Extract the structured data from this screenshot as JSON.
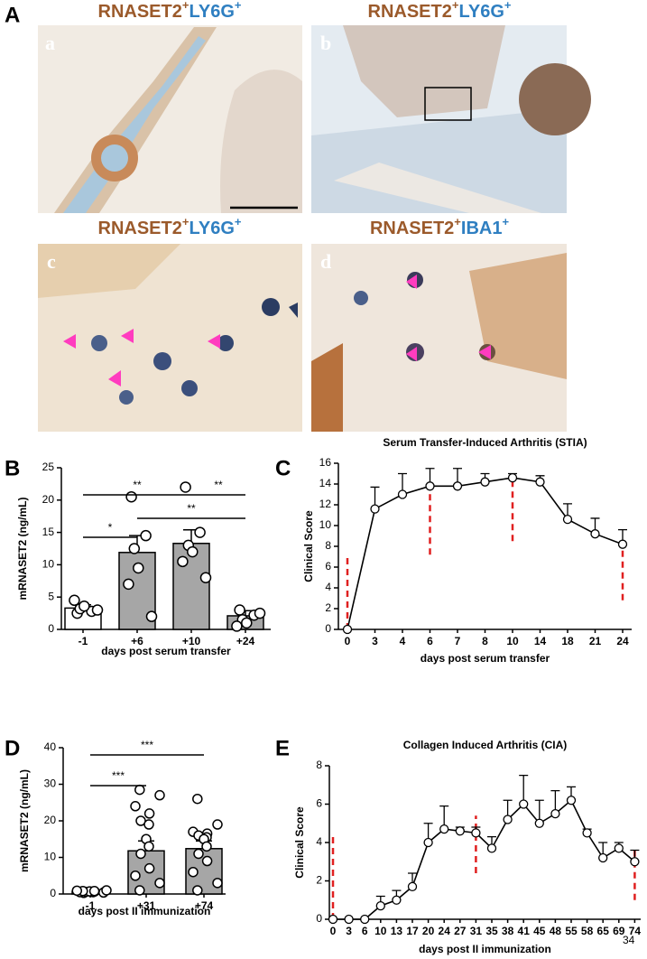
{
  "panel_labels": [
    "A",
    "B",
    "C",
    "D",
    "E"
  ],
  "micrographs": [
    {
      "label": "a",
      "title": [
        {
          "text": "RNASET2",
          "color": "#9b5a2b",
          "sup": false
        },
        {
          "text": "+",
          "color": "#9b5a2b",
          "sup": true
        },
        {
          "text": "LY6G",
          "color": "#2f7fc1",
          "sup": false
        },
        {
          "text": "+",
          "color": "#2f7fc1",
          "sup": true
        }
      ]
    },
    {
      "label": "b",
      "title": [
        {
          "text": "RNASET2",
          "color": "#9b5a2b",
          "sup": false
        },
        {
          "text": "+",
          "color": "#9b5a2b",
          "sup": true
        },
        {
          "text": "LY6G",
          "color": "#2f7fc1",
          "sup": false
        },
        {
          "text": "+",
          "color": "#2f7fc1",
          "sup": true
        }
      ]
    },
    {
      "label": "c",
      "title": [
        {
          "text": "RNASET2",
          "color": "#9b5a2b",
          "sup": false
        },
        {
          "text": "+",
          "color": "#9b5a2b",
          "sup": true
        },
        {
          "text": "LY6G",
          "color": "#2f7fc1",
          "sup": false
        },
        {
          "text": "+",
          "color": "#2f7fc1",
          "sup": true
        }
      ]
    },
    {
      "label": "d",
      "title": [
        {
          "text": "RNASET2",
          "color": "#9b5a2b",
          "sup": false
        },
        {
          "text": "+",
          "color": "#9b5a2b",
          "sup": true
        },
        {
          "text": "IBA1",
          "color": "#2f7fc1",
          "sup": false
        },
        {
          "text": "+",
          "color": "#2f7fc1",
          "sup": true
        }
      ]
    }
  ],
  "chart_data": [
    {
      "type": "bar",
      "categories": [
        "-1",
        "+6",
        "+10",
        "+24"
      ],
      "values": [
        3.3,
        11.9,
        13.3,
        2.1
      ],
      "errors": [
        0.5,
        2.6,
        2.1,
        0.8
      ],
      "colors": [
        "#ffffff",
        "#a6a6a6",
        "#a6a6a6",
        "#a6a6a6"
      ],
      "points": [
        [
          2.5,
          2.8,
          3.2,
          3.6,
          4.5,
          3.0
        ],
        [
          20.5,
          14.5,
          12.5,
          9.5,
          7.0,
          2.0
        ],
        [
          22.0,
          15.0,
          13.0,
          12.0,
          10.5,
          8.0
        ],
        [
          3.0,
          2.2,
          1.5,
          1.0,
          0.5,
          2.5
        ]
      ],
      "ylim": [
        0,
        25
      ],
      "yticks": [
        0,
        5,
        10,
        15,
        20,
        25
      ],
      "ylabel": "mRNASET2 (ng/mL)",
      "xlabel": "days post serum transfer",
      "brackets": [
        {
          "from": "-1",
          "to": "+10",
          "label": "**"
        },
        {
          "from": "+10",
          "to": "+24",
          "label": "**"
        },
        {
          "from": "-1",
          "to": "+6",
          "label": "*"
        },
        {
          "from": "+6",
          "to": "+24",
          "label": "**"
        }
      ]
    },
    {
      "type": "line",
      "title": "Serum Transfer-Induced Arthritis (STIA)",
      "categories": [
        "0",
        "3",
        "4",
        "6",
        "7",
        "8",
        "10",
        "14",
        "18",
        "21",
        "24"
      ],
      "values": [
        0,
        11.6,
        13,
        13.8,
        13.8,
        14.2,
        14.6,
        14.2,
        10.6,
        9.2,
        8.2
      ],
      "errors": [
        0,
        2.1,
        2,
        1.7,
        1.7,
        0.8,
        0.4,
        0.6,
        1.5,
        1.5,
        1.4
      ],
      "color": "#000000",
      "marker_color": "#e02020",
      "markers": [
        {
          "category": "0",
          "range": [
            0,
            7
          ]
        },
        {
          "category": "6",
          "range": [
            7.2,
            13.8
          ]
        },
        {
          "category": "10",
          "range": [
            8.5,
            14.6
          ]
        },
        {
          "category": "24",
          "range": [
            2.8,
            8.2
          ]
        }
      ],
      "ylim": [
        0,
        16
      ],
      "yticks": [
        0,
        2,
        4,
        6,
        8,
        10,
        12,
        14,
        16
      ],
      "ylabel": "Clinical Score",
      "xlabel": "days post serum transfer"
    },
    {
      "type": "bar",
      "categories": [
        "-1",
        "+31",
        "+74"
      ],
      "values": [
        0.7,
        11.8,
        12.4
      ],
      "errors": [
        0.2,
        2.7,
        2.1
      ],
      "colors": [
        "#ffffff",
        "#a6a6a6",
        "#a6a6a6"
      ],
      "points": [
        [
          0.3,
          0.4,
          0.5,
          0.5,
          0.6,
          0.6,
          0.7,
          0.7,
          0.8,
          0.8,
          0.9,
          1.0
        ],
        [
          28.5,
          27.0,
          24.0,
          22.0,
          20.0,
          19.0,
          15.0,
          13.0,
          11.0,
          7.0,
          5.0,
          3.0,
          1.0
        ],
        [
          26.0,
          19.0,
          17.0,
          16.5,
          16.0,
          15.5,
          15.0,
          13.0,
          11.0,
          9.0,
          6.0,
          3.0,
          1.0
        ]
      ],
      "ylim": [
        0,
        40
      ],
      "yticks": [
        0,
        10,
        20,
        30,
        40
      ],
      "ylabel": "mRNASET2 (ng/mL)",
      "xlabel": "days post II immunization",
      "brackets": [
        {
          "from": "-1",
          "to": "+31",
          "label": "***"
        },
        {
          "from": "-1",
          "to": "+74",
          "label": "***"
        }
      ]
    },
    {
      "type": "line",
      "title": "Collagen Induced Arthritis (CIA)",
      "categories": [
        "0",
        "3",
        "6",
        "10",
        "13",
        "17",
        "20",
        "24",
        "27",
        "31",
        "35",
        "38",
        "41",
        "45",
        "48",
        "55",
        "58",
        "65",
        "69",
        "74"
      ],
      "values": [
        0,
        0,
        0,
        0.7,
        1,
        1.7,
        4,
        4.7,
        4.6,
        4.5,
        3.7,
        5.2,
        6,
        5,
        5.5,
        6.2,
        4.5,
        3.2,
        3.7,
        3
      ],
      "errors": [
        0,
        0,
        0,
        0.5,
        0.5,
        0.7,
        1,
        1.2,
        0.2,
        0.3,
        0.6,
        1,
        1.5,
        1.2,
        1.2,
        0.7,
        0.2,
        0.8,
        0.3,
        0.6
      ],
      "color": "#000000",
      "marker_color": "#e02020",
      "markers": [
        {
          "category": "0",
          "range": [
            0,
            4.5
          ]
        },
        {
          "category": "31",
          "range": [
            2.4,
            5.4
          ]
        },
        {
          "category": "74",
          "range": [
            1,
            3.6
          ]
        }
      ],
      "ylim": [
        0,
        8
      ],
      "yticks": [
        0,
        2,
        4,
        6,
        8
      ],
      "ylabel": "Clinical Score",
      "xlabel": "days post II immunization"
    }
  ],
  "page_number": "34"
}
